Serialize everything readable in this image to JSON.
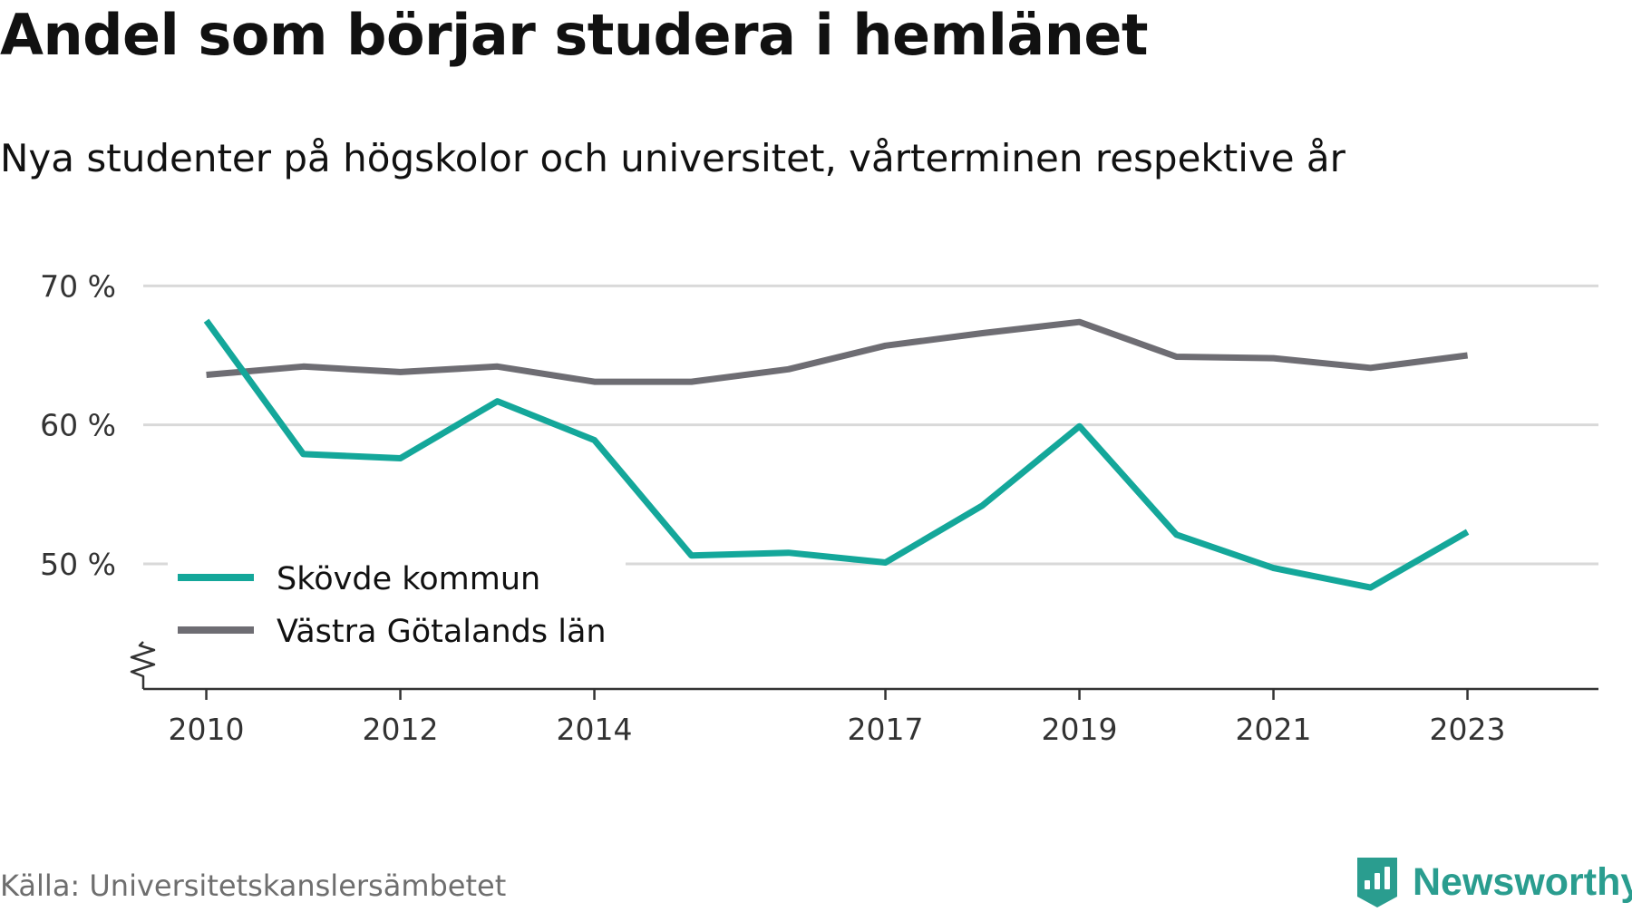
{
  "title": "Andel som börjar studera i hemlänet",
  "subtitle": "Nya studenter på högskolor och universitet, vårterminen respektive år",
  "source": "Källa: Universitetskanslersämbetet",
  "brand": "Newsworthy",
  "colors": {
    "skovde": "#14a79a",
    "vg": "#6e6d73",
    "grid": "#d9d9d9",
    "axis": "#333333",
    "brand": "#2a9d8f"
  },
  "chart_data": {
    "type": "line",
    "title": "Andel som börjar studera i hemlänet",
    "subtitle": "Nya studenter på högskolor och universitet, vårterminen respektive år",
    "x": [
      2010,
      2011,
      2012,
      2013,
      2014,
      2015,
      2016,
      2017,
      2018,
      2019,
      2020,
      2021,
      2022,
      2023
    ],
    "xticks": [
      "2010",
      "2012",
      "2014",
      "2017",
      "2019",
      "2021",
      "2023"
    ],
    "yticks": [
      50,
      60,
      70
    ],
    "ytick_labels": [
      "50 %",
      "60 %",
      "70 %"
    ],
    "ylim": [
      41,
      71
    ],
    "xlim": [
      2009.35,
      2024.35
    ],
    "y_axis_break": true,
    "grid": true,
    "legend_position": "bottom-left",
    "series": [
      {
        "name": "Skövde kommun",
        "color": "#14a79a",
        "values": [
          67.5,
          57.9,
          57.6,
          61.7,
          58.9,
          50.6,
          50.8,
          50.1,
          54.2,
          59.9,
          52.1,
          49.7,
          48.3,
          52.3
        ]
      },
      {
        "name": "Västra Götalands län",
        "color": "#6e6d73",
        "values": [
          63.6,
          64.2,
          63.8,
          64.2,
          63.1,
          63.1,
          64.0,
          65.7,
          66.6,
          67.4,
          64.9,
          64.8,
          64.1,
          65.0
        ]
      }
    ]
  }
}
